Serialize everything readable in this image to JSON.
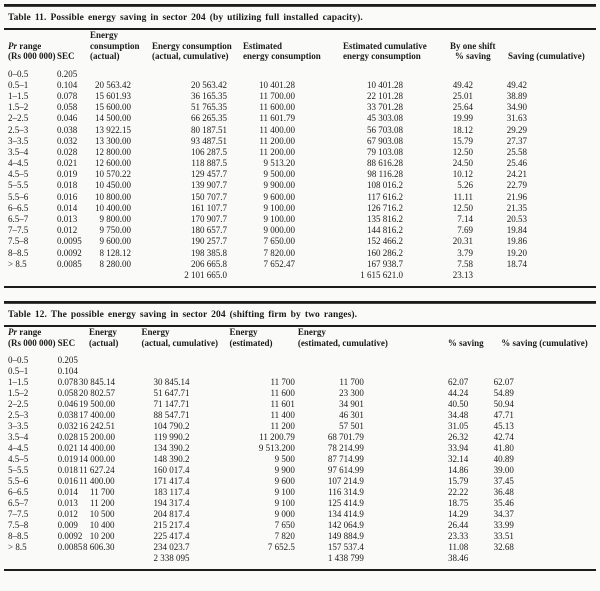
{
  "page": {
    "background": "#fafaf8",
    "text_color": "#1a1a1a",
    "rule_color": "#1c1c1c"
  },
  "tables": [
    {
      "title": "Table 11. Possible energy saving in sector 204 (by utilizing full installed capacity).",
      "columns": [
        {
          "em": "Pr",
          "lines": [
            "Pr range",
            "(Rs 000 000)"
          ]
        },
        {
          "lines": [
            "SEC"
          ]
        },
        {
          "lines": [
            "Energy",
            "consumption",
            "(actual)"
          ]
        },
        {
          "lines": [
            "Energy consumption",
            "(actual, cumulative)"
          ]
        },
        {
          "lines": [
            "Estimated",
            "energy consumption"
          ]
        },
        {
          "lines": [
            "Estimated cumulative",
            "energy consumption"
          ]
        },
        {
          "lines": [
            "By one shift",
            "% saving"
          ]
        },
        {
          "lines": [
            "Saving (cumulative)"
          ]
        }
      ],
      "rows": [
        [
          "0–0.5",
          "0.205",
          "",
          "",
          "",
          "",
          "",
          ""
        ],
        [
          "0.5–1",
          "0.104",
          "20 563.42",
          "20 563.42",
          "10 401.28",
          "10 401.28",
          "49.42",
          "49.42"
        ],
        [
          "1–1.5",
          "0.078",
          "15 601.93",
          "36 165.35",
          "11 700.00",
          "22 101.28",
          "25.01",
          "38.89"
        ],
        [
          "1.5–2",
          "0.058",
          "15 600.00",
          "51 765.35",
          "11 600.00",
          "33 701.28",
          "25.64",
          "34.90"
        ],
        [
          "2–2.5",
          "0.046",
          "14 500.00",
          "66 265.35",
          "11 601.79",
          "45 303.08",
          "19.99",
          "31.63"
        ],
        [
          "2.5–3",
          "0.038",
          "13 922.15",
          "80 187.51",
          "11 400.00",
          "56 703.08",
          "18.12",
          "29.29"
        ],
        [
          "3–3.5",
          "0.032",
          "13 300.00",
          "93 487.51",
          "11 200.00",
          "67 903.08",
          "15.79",
          "27.37"
        ],
        [
          "3.5–4",
          "0.028",
          "12 800.00",
          "106 287.5",
          "11 200.00",
          "79 103.08",
          "12.50",
          "25.58"
        ],
        [
          "4–4.5",
          "0.021",
          "12 600.00",
          "118 887.5",
          "9 513.20",
          "88 616.28",
          "24.50",
          "25.46"
        ],
        [
          "4.5–5",
          "0.019",
          "10 570.22",
          "129 457.7",
          "9 500.00",
          "98 116.28",
          "10.12",
          "24.21"
        ],
        [
          "5–5.5",
          "0.018",
          "10 450.00",
          "139 907.7",
          "9 900.00",
          "108 016.2",
          "5.26",
          "22.79"
        ],
        [
          "5.5–6",
          "0.016",
          "10 800.00",
          "150 707.7",
          "9 600.00",
          "117 616.2",
          "11.11",
          "21.96"
        ],
        [
          "6–6.5",
          "0.014",
          "10 400.00",
          "161 107.7",
          "9 100.00",
          "126 716.2",
          "12.50",
          "21.35"
        ],
        [
          "6.5–7",
          "0.013",
          "9 800.00",
          "170 907.7",
          "9 100.00",
          "135 816.2",
          "7.14",
          "20.53"
        ],
        [
          "7–7.5",
          "0.012",
          "9 750.00",
          "180 657.7",
          "9 000.00",
          "144 816.2",
          "7.69",
          "19.84"
        ],
        [
          "7.5–8",
          "0.0095",
          "9 600.00",
          "190 257.7",
          "7 650.00",
          "152 466.2",
          "20.31",
          "19.86"
        ],
        [
          "8–8.5",
          "0.0092",
          "8 128.12",
          "198 385.8",
          "7 820.00",
          "160 286.2",
          "3.79",
          "19.20"
        ],
        [
          "> 8.5",
          "0.0085",
          "8 280.00",
          "206 665.8",
          "7 652.47",
          "167 938.7",
          "7.58",
          "18.74"
        ]
      ],
      "total_row": [
        "",
        "",
        "",
        "2 101 665.0",
        "",
        "1 615 621.0",
        "23.13",
        ""
      ]
    },
    {
      "title": "Table 12. The possible energy saving in sector 204 (shifting firm by two ranges).",
      "columns": [
        {
          "em": "Pr",
          "lines": [
            "Pr range",
            "(Rs 000 000)"
          ]
        },
        {
          "lines": [
            "SEC"
          ]
        },
        {
          "lines": [
            "Energy",
            "(actual)"
          ]
        },
        {
          "lines": [
            "Energy",
            "(actual, cumulative)"
          ]
        },
        {
          "lines": [
            "Energy",
            "(estimated)"
          ]
        },
        {
          "lines": [
            "Energy",
            "(estimated, cumulative)"
          ]
        },
        {
          "lines": [
            "% saving"
          ]
        },
        {
          "lines": [
            "% saving (cumulative)"
          ]
        }
      ],
      "rows": [
        [
          "0–0.5",
          "0.205",
          "",
          "",
          "",
          "",
          "",
          ""
        ],
        [
          "0.5–1",
          "0.104",
          "",
          "",
          "",
          "",
          "",
          ""
        ],
        [
          "1–1.5",
          "0.078",
          "30 845.14",
          "30 845.14",
          "11 700",
          "11 700",
          "62.07",
          "62.07"
        ],
        [
          "1.5–2",
          "0.058",
          "20 802.57",
          "51 647.71",
          "11 600",
          "23 300",
          "44.24",
          "54.89"
        ],
        [
          "2–2.5",
          "0.046",
          "19 500.00",
          "71 147.71",
          "11 601",
          "34 901",
          "40.50",
          "50.94"
        ],
        [
          "2.5–3",
          "0.038",
          "17 400.00",
          "88 547.71",
          "11 400",
          "46 301",
          "34.48",
          "47.71"
        ],
        [
          "3–3.5",
          "0.032",
          "16 242.51",
          "104 790.2",
          "11 200",
          "57 501",
          "31.05",
          "45.13"
        ],
        [
          "3.5–4",
          "0.028",
          "15 200.00",
          "119 990.2",
          "11 200.79",
          "68 701.79",
          "26.32",
          "42.74"
        ],
        [
          "4–4.5",
          "0.021",
          "14 400.00",
          "134 390.2",
          "9 513.200",
          "78 214.99",
          "33.94",
          "41.80"
        ],
        [
          "4.5–5",
          "0.019",
          "14 000.00",
          "148 390.2",
          "9 500",
          "87 714.99",
          "32.14",
          "40.89"
        ],
        [
          "5–5.5",
          "0.018",
          "11 627.24",
          "160 017.4",
          "9 900",
          "97 614.99",
          "14.86",
          "39.00"
        ],
        [
          "5.5–6",
          "0.016",
          "11 400.00",
          "171 417.4",
          "9 600",
          "107 214.9",
          "15.79",
          "37.45"
        ],
        [
          "6–6.5",
          "0.014",
          "11 700",
          "183 117.4",
          "9 100",
          "116 314.9",
          "22.22",
          "36.48"
        ],
        [
          "6.5–7",
          "0.013",
          "11 200",
          "194 317.4",
          "9 100",
          "125 414.9",
          "18.75",
          "35.46"
        ],
        [
          "7–7.5",
          "0.012",
          "10 500",
          "204 817.4",
          "9 000",
          "134 414.9",
          "14.29",
          "34.37"
        ],
        [
          "7.5–8",
          "0.009",
          "10 400",
          "215 217.4",
          "7 650",
          "142 064.9",
          "26.44",
          "33.99"
        ],
        [
          "8–8.5",
          "0.0092",
          "10 200",
          "225 417.4",
          "7 820",
          "149 884.9",
          "23.33",
          "33.51"
        ],
        [
          "> 8.5",
          "0.0085",
          "8 606.30",
          "234 023.7",
          "7 652.5",
          "157 537.4",
          "11.08",
          "32.68"
        ]
      ],
      "total_row": [
        "",
        "",
        "",
        "2 338 095",
        "",
        "1 438 799",
        "38.46",
        ""
      ]
    }
  ]
}
